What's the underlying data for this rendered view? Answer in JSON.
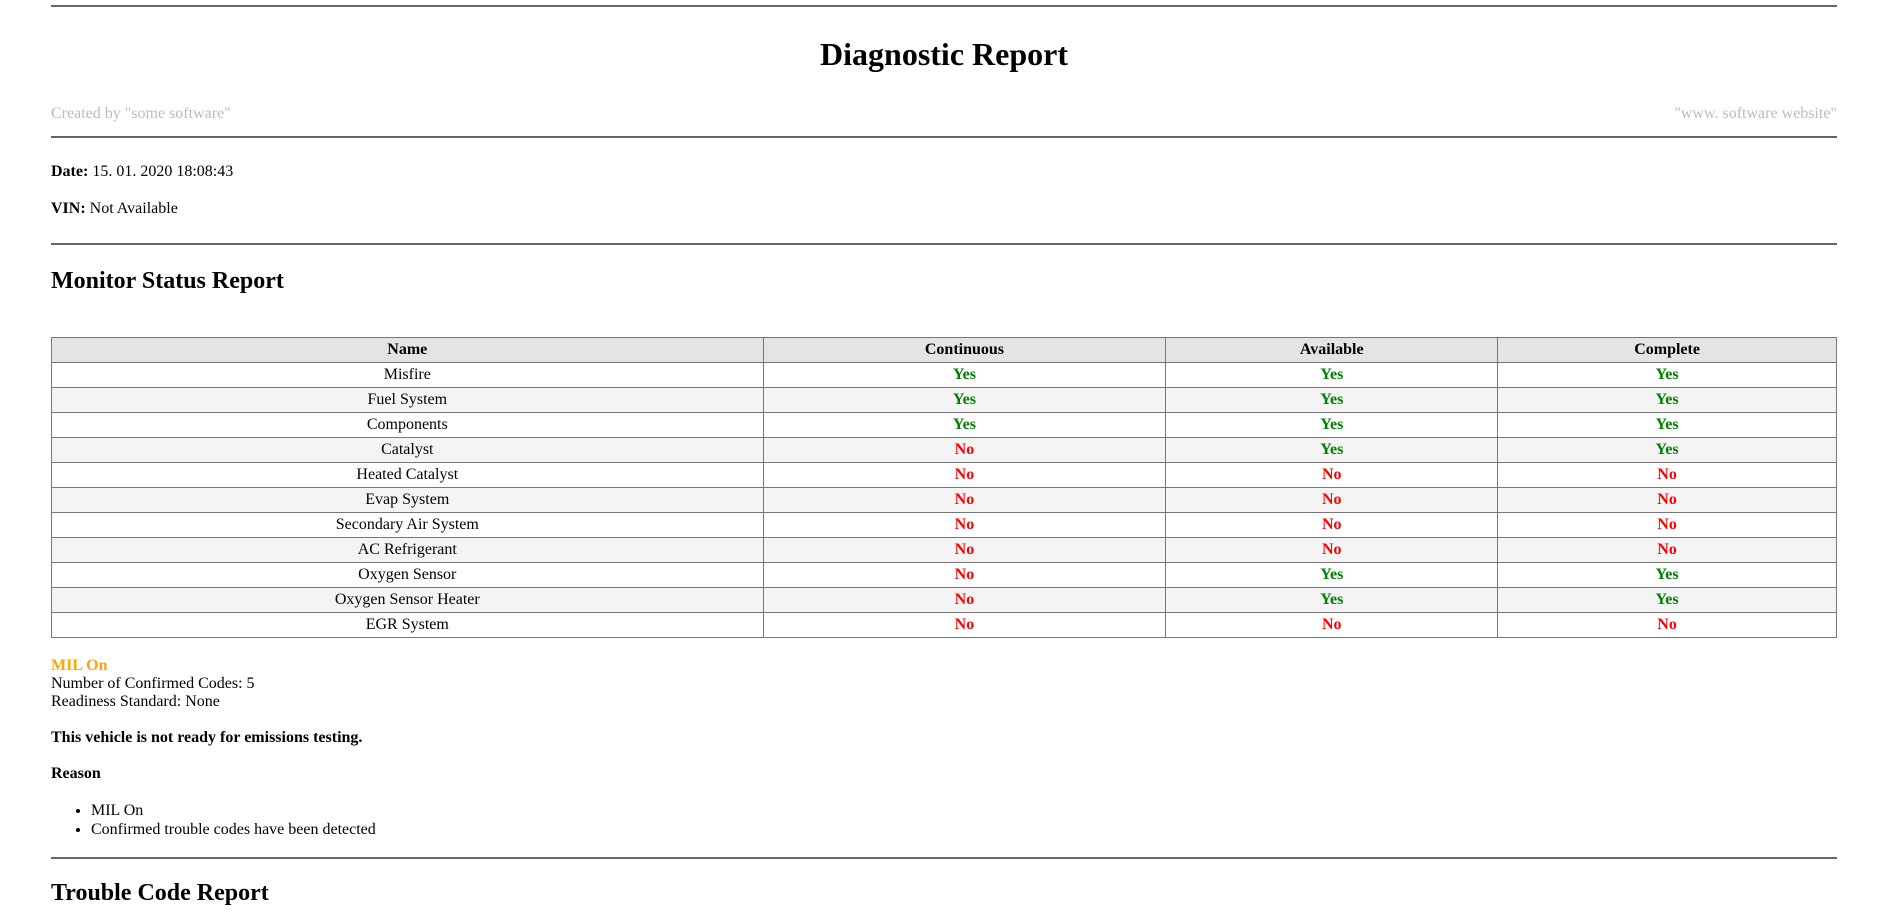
{
  "header": {
    "title": "Diagnostic Report",
    "created_by": "Created by \"some software\"",
    "website": "\"www. software website\""
  },
  "meta": {
    "date_label": "Date:",
    "date_value": "15. 01. 2020 18:08:43",
    "vin_label": "VIN:",
    "vin_value": "Not Available"
  },
  "monitor": {
    "title": "Monitor Status Report",
    "columns": [
      "Name",
      "Continuous",
      "Available",
      "Complete"
    ],
    "rows": [
      [
        "Misfire",
        "Yes",
        "Yes",
        "Yes"
      ],
      [
        "Fuel System",
        "Yes",
        "Yes",
        "Yes"
      ],
      [
        "Components",
        "Yes",
        "Yes",
        "Yes"
      ],
      [
        "Catalyst",
        "No",
        "Yes",
        "Yes"
      ],
      [
        "Heated Catalyst",
        "No",
        "No",
        "No"
      ],
      [
        "Evap System",
        "No",
        "No",
        "No"
      ],
      [
        "Secondary Air System",
        "No",
        "No",
        "No"
      ],
      [
        "AC Refrigerant",
        "No",
        "No",
        "No"
      ],
      [
        "Oxygen Sensor",
        "No",
        "Yes",
        "Yes"
      ],
      [
        "Oxygen Sensor Heater",
        "No",
        "Yes",
        "Yes"
      ],
      [
        "EGR System",
        "No",
        "No",
        "No"
      ]
    ],
    "colors": {
      "yes": "#008000",
      "no": "#ff0000",
      "mil": "#ffa500"
    }
  },
  "status": {
    "mil": "MIL On",
    "confirmed_codes": "Number of Confirmed Codes: 5",
    "readiness": "Readiness Standard: None",
    "ready_message": "This vehicle is not ready for emissions testing.",
    "reason_label": "Reason",
    "reasons": [
      "MIL On",
      "Confirmed trouble codes have been detected"
    ]
  },
  "trouble": {
    "title": "Trouble Code Report"
  }
}
